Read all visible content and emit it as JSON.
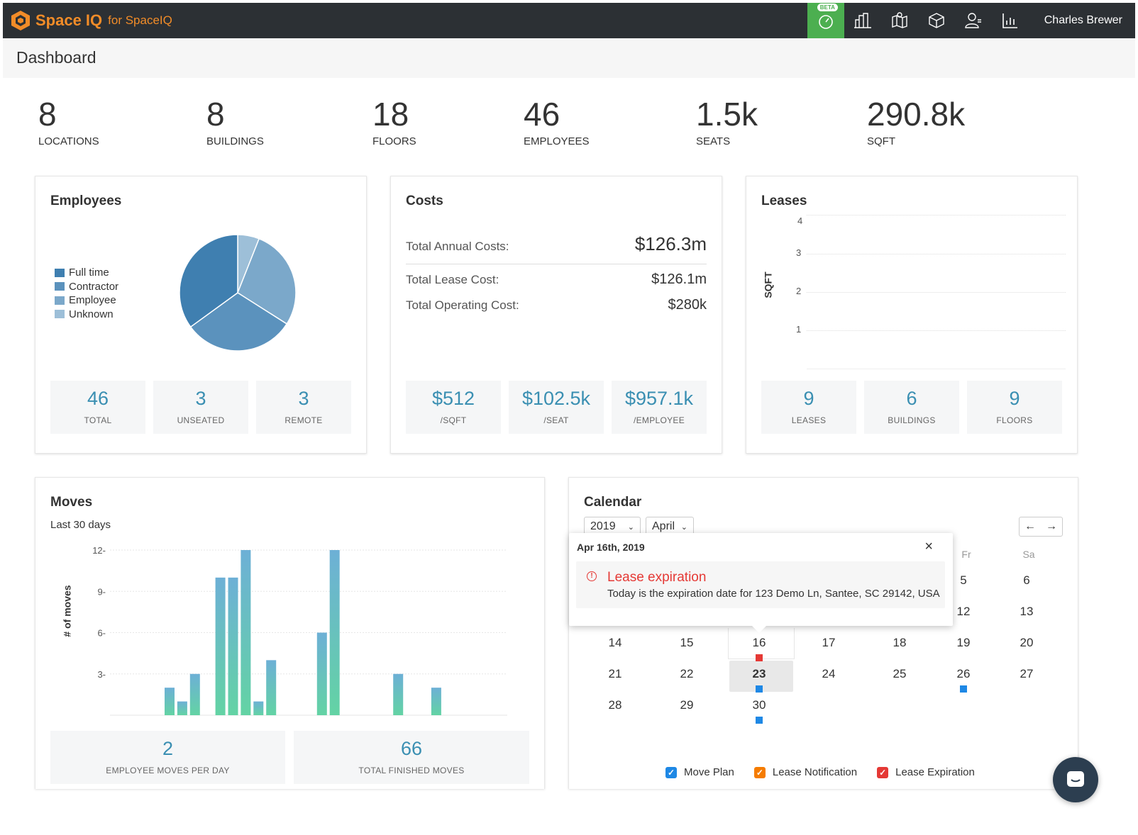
{
  "app": {
    "brand": "Space IQ",
    "brand_suffix": "for SpaceIQ",
    "beta": "BETA",
    "user": "Charles Brewer",
    "nav_icons": [
      "dashboard-icon",
      "buildings-icon",
      "map-icon",
      "box-icon",
      "user-icon",
      "reports-icon"
    ]
  },
  "page": {
    "title": "Dashboard"
  },
  "stats": [
    {
      "value": "8",
      "label": "LOCATIONS"
    },
    {
      "value": "8",
      "label": "BUILDINGS"
    },
    {
      "value": "18",
      "label": "FLOORS"
    },
    {
      "value": "46",
      "label": "EMPLOYEES"
    },
    {
      "value": "1.5k",
      "label": "SEATS"
    },
    {
      "value": "290.8k",
      "label": "SQFT"
    }
  ],
  "employees": {
    "title": "Employees",
    "legend": [
      {
        "label": "Full time",
        "color": "#3f7fb0"
      },
      {
        "label": "Contractor",
        "color": "#5b92bd"
      },
      {
        "label": "Employee",
        "color": "#7ba8ca"
      },
      {
        "label": "Unknown",
        "color": "#9dbfd8"
      }
    ],
    "tiles": [
      {
        "value": "46",
        "label": "TOTAL"
      },
      {
        "value": "3",
        "label": "UNSEATED"
      },
      {
        "value": "3",
        "label": "REMOTE"
      }
    ]
  },
  "costs": {
    "title": "Costs",
    "annual_label": "Total Annual Costs:",
    "annual_value": "$126.3m",
    "lease_label": "Total Lease Cost:",
    "lease_value": "$126.1m",
    "operating_label": "Total Operating Cost:",
    "operating_value": "$280k",
    "tiles": [
      {
        "value": "$512",
        "label": "/SQFT"
      },
      {
        "value": "$102.5k",
        "label": "/SEAT"
      },
      {
        "value": "$957.1k",
        "label": "/EMPLOYEE"
      }
    ]
  },
  "leases": {
    "title": "Leases",
    "ylabel": "SQFT",
    "ticks": [
      "4",
      "3",
      "2",
      "1"
    ],
    "tiles": [
      {
        "value": "9",
        "label": "LEASES"
      },
      {
        "value": "6",
        "label": "BUILDINGS"
      },
      {
        "value": "9",
        "label": "FLOORS"
      }
    ]
  },
  "moves": {
    "title": "Moves",
    "subtitle": "Last 30 days",
    "tiles": [
      {
        "value": "2",
        "label": "EMPLOYEE MOVES PER DAY"
      },
      {
        "value": "66",
        "label": "TOTAL FINISHED MOVES"
      }
    ]
  },
  "chart_data": [
    {
      "type": "pie",
      "title": "Employees",
      "labels": [
        "Full time",
        "Contractor",
        "Employee",
        "Unknown"
      ],
      "values": [
        35,
        31,
        28,
        6
      ]
    },
    {
      "type": "bar",
      "title": "Moves",
      "ylabel": "# of moves",
      "ylim": [
        0,
        12
      ],
      "yticks": [
        "12",
        "9",
        "6",
        "3"
      ],
      "values": [
        2,
        1,
        3,
        0,
        10,
        10,
        12,
        1,
        4,
        0,
        0,
        0,
        6,
        12,
        0,
        0,
        0,
        0,
        3,
        0,
        0,
        2
      ]
    }
  ],
  "calendar": {
    "title": "Calendar",
    "year": "2019",
    "month": "April",
    "prev": "←",
    "next": "→",
    "weekday_headers": [
      "Fr",
      "Sa"
    ],
    "rows": [
      [
        "",
        "",
        "",
        "",
        "",
        "5",
        "6"
      ],
      [
        "",
        "",
        "",
        "",
        "",
        "12",
        "13"
      ],
      [
        "14",
        "15",
        "16",
        "17",
        "18",
        "19",
        "20"
      ],
      [
        "21",
        "22",
        "23",
        "24",
        "25",
        "26",
        "27"
      ],
      [
        "28",
        "29",
        "30",
        "",
        "",
        "",
        ""
      ]
    ],
    "events": [
      {
        "day": "16",
        "kind": "lease-expiration",
        "color": "#e53935"
      },
      {
        "day": "23",
        "kind": "move-plan",
        "color": "#1e88e5"
      },
      {
        "day": "26",
        "kind": "move-plan",
        "color": "#1e88e5"
      },
      {
        "day": "30",
        "kind": "move-plan",
        "color": "#1e88e5"
      }
    ],
    "legend": [
      {
        "label": "Move Plan",
        "color": "#1e88e5"
      },
      {
        "label": "Lease Notification",
        "color": "#f57c00"
      },
      {
        "label": "Lease Expiration",
        "color": "#e53935"
      }
    ],
    "popup": {
      "date": "Apr 16th, 2019",
      "close": "×",
      "event_title": "Lease expiration",
      "event_text": "Today is the expiration date for 123 Demo Ln, Santee, SC 29142, USA"
    }
  }
}
